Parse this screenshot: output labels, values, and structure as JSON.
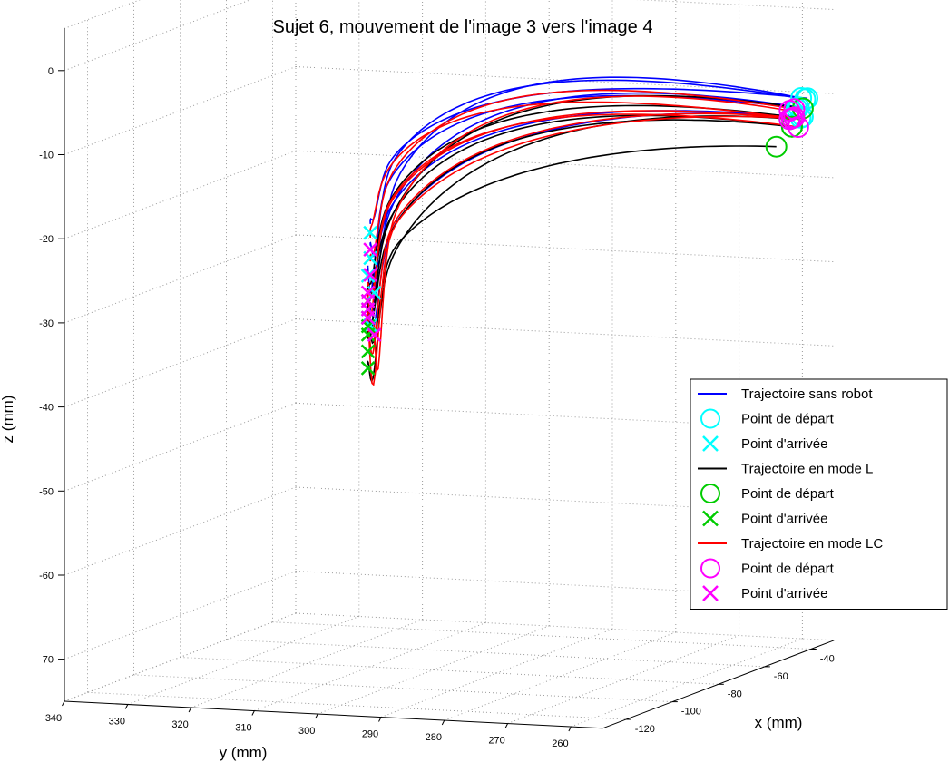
{
  "chart_data": {
    "type": "line",
    "projection": "3d",
    "title": "Sujet 6, mouvement de l'image 3 vers l'image 4",
    "xlabel": "x (mm)",
    "ylabel": "y (mm)",
    "zlabel": "z (mm)",
    "xlim": [
      -130,
      -30
    ],
    "ylim": [
      255,
      340
    ],
    "zlim": [
      -75,
      5
    ],
    "x_ticks": [
      "-40",
      "-60",
      "-80",
      "-100",
      "-120"
    ],
    "y_ticks": [
      "340",
      "330",
      "320",
      "310",
      "300",
      "290",
      "280",
      "270",
      "260"
    ],
    "z_ticks": [
      "0",
      "-10",
      "-20",
      "-30",
      "-40",
      "-50",
      "-60",
      "-70"
    ],
    "grid": true,
    "legend_position": "right",
    "legend": [
      {
        "label": "Trajectoire sans robot",
        "marker": "line",
        "color": "#0000ff"
      },
      {
        "label": "Point de départ",
        "marker": "o",
        "color": "#00ffff"
      },
      {
        "label": "Point d'arrivée",
        "marker": "x",
        "color": "#00ffff"
      },
      {
        "label": "Trajectoire en mode L",
        "marker": "line",
        "color": "#000000"
      },
      {
        "label": "Point de départ",
        "marker": "o",
        "color": "#00cc00"
      },
      {
        "label": "Point d'arrivée",
        "marker": "x",
        "color": "#00cc00"
      },
      {
        "label": "Trajectoire en mode LC",
        "marker": "line",
        "color": "#ff0000"
      },
      {
        "label": "Point de départ",
        "marker": "o",
        "color": "#ff00ff"
      },
      {
        "label": "Point d'arrivée",
        "marker": "x",
        "color": "#ff00ff"
      }
    ],
    "series": [
      {
        "mode": "sans robot",
        "color": "#0000ff",
        "start_color": "#00ffff",
        "end_color": "#00ffff",
        "trials": [
          {
            "start": [
              -36,
              257,
              -10
            ],
            "end": [
              -58,
              318,
              -26
            ],
            "dip": 3,
            "arch": 4,
            "curve": 1.0
          },
          {
            "start": [
              -37,
              257,
              -10
            ],
            "end": [
              -58,
              318,
              -29
            ],
            "dip": 6,
            "arch": 6,
            "curve": 0.9
          },
          {
            "start": [
              -38,
              258,
              -11
            ],
            "end": [
              -59,
              318,
              -31
            ],
            "dip": 8,
            "arch": 5,
            "curve": 1.1
          },
          {
            "start": [
              -36,
              258,
              -10
            ],
            "end": [
              -59,
              317,
              -33
            ],
            "dip": 4,
            "arch": 7,
            "curve": 0.8
          },
          {
            "start": [
              -39,
              257,
              -12
            ],
            "end": [
              -59,
              318,
              -35
            ],
            "dip": 9,
            "arch": 4,
            "curve": 1.2
          },
          {
            "start": [
              -37,
              258,
              -11
            ],
            "end": [
              -58,
              318,
              -37
            ],
            "dip": 5,
            "arch": 6,
            "curve": 1.0
          },
          {
            "start": [
              -38,
              257,
              -12
            ],
            "end": [
              -59,
              318,
              -36
            ],
            "dip": 7,
            "arch": 3,
            "curve": 0.7
          }
        ]
      },
      {
        "mode": "L",
        "color": "#000000",
        "start_color": "#00cc00",
        "end_color": "#00cc00",
        "trials": [
          {
            "start": [
              -44,
              259,
              -15
            ],
            "end": [
              -59,
              318,
              -36
            ],
            "dip": 7,
            "arch": 1,
            "curve": 0.6
          },
          {
            "start": [
              -39,
              258,
              -12
            ],
            "end": [
              -59,
              318,
              -34
            ],
            "dip": 4,
            "arch": 5,
            "curve": 1.0
          },
          {
            "start": [
              -40,
              258,
              -13
            ],
            "end": [
              -59,
              318,
              -38
            ],
            "dip": 5,
            "arch": 4,
            "curve": 0.9
          },
          {
            "start": [
              -38,
              257,
              -11
            ],
            "end": [
              -59,
              318,
              -40
            ],
            "dip": 6,
            "arch": 6,
            "curve": 1.1
          },
          {
            "start": [
              -41,
              258,
              -12
            ],
            "end": [
              -59,
              318,
              -42
            ],
            "dip": 8,
            "arch": 3,
            "curve": 0.8
          },
          {
            "start": [
              -40,
              258,
              -13
            ],
            "end": [
              -59,
              318,
              -37
            ],
            "dip": 3,
            "arch": 5,
            "curve": 1.0
          }
        ]
      },
      {
        "mode": "LC",
        "color": "#ff0000",
        "start_color": "#ff00ff",
        "end_color": "#ff00ff",
        "trials": [
          {
            "start": [
              -40,
              258,
              -12
            ],
            "end": [
              -58,
              318,
              -28
            ],
            "dip": 2,
            "arch": 5,
            "curve": 1.2
          },
          {
            "start": [
              -39,
              258,
              -11
            ],
            "end": [
              -58,
              318,
              -31
            ],
            "dip": 4,
            "arch": 6,
            "curve": 1.0
          },
          {
            "start": [
              -41,
              258,
              -12
            ],
            "end": [
              -59,
              318,
              -33
            ],
            "dip": 6,
            "arch": 4,
            "curve": 0.9
          },
          {
            "start": [
              -40,
              257,
              -13
            ],
            "end": [
              -59,
              318,
              -34
            ],
            "dip": 8,
            "arch": 5,
            "curve": 1.1
          },
          {
            "start": [
              -39,
              258,
              -12
            ],
            "end": [
              -59,
              318,
              -36
            ],
            "dip": 10,
            "arch": 3,
            "curve": 0.8
          },
          {
            "start": [
              -41,
              258,
              -11
            ],
            "end": [
              -59,
              317,
              -38
            ],
            "dip": 12,
            "arch": 6,
            "curve": 1.0
          },
          {
            "start": [
              -40,
              258,
              -12
            ],
            "end": [
              -59,
              318,
              -35
            ],
            "dip": 14,
            "arch": 2,
            "curve": 0.7
          }
        ]
      }
    ]
  }
}
